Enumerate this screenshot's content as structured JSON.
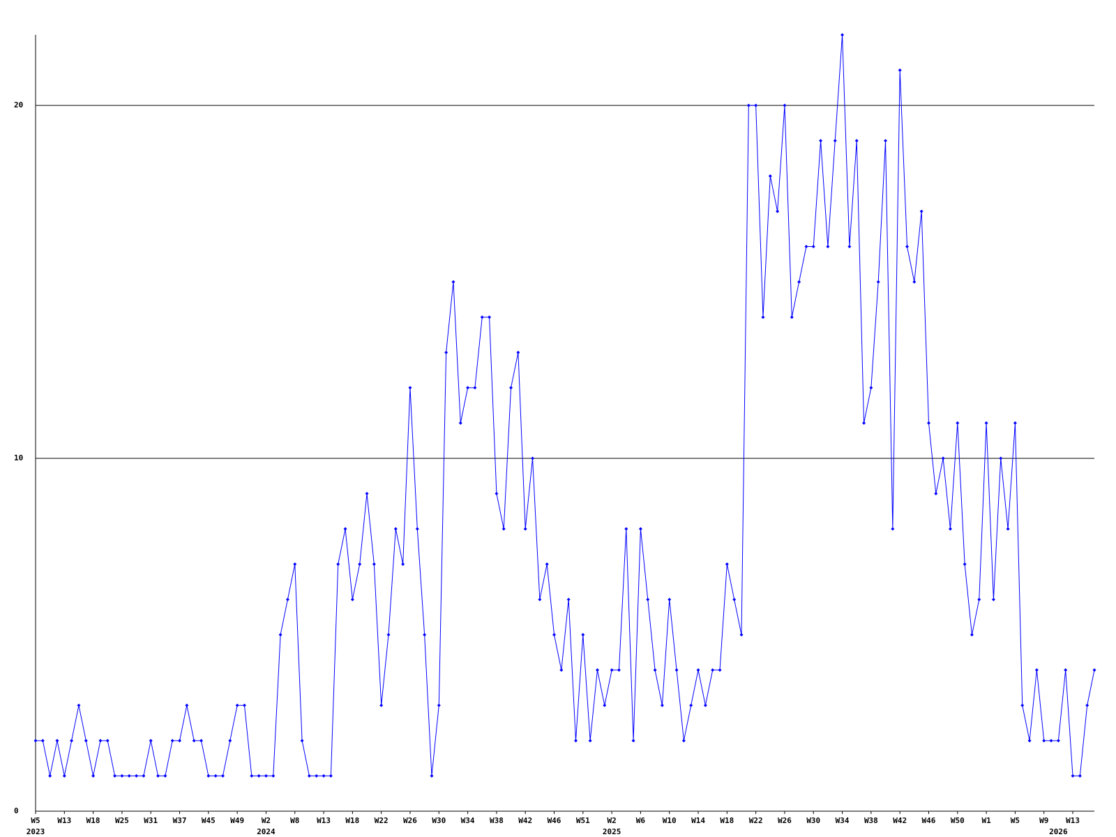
{
  "chart_data": {
    "type": "line",
    "color": "#0000ff",
    "categories": [
      "W5",
      null,
      null,
      null,
      "W13",
      null,
      null,
      null,
      "W18",
      null,
      null,
      null,
      "W25",
      null,
      null,
      null,
      "W31",
      null,
      null,
      null,
      "W37",
      null,
      null,
      null,
      "W45",
      null,
      null,
      null,
      "W49",
      null,
      null,
      null,
      "W2",
      null,
      null,
      null,
      "W8",
      null,
      null,
      null,
      "W13",
      null,
      null,
      null,
      "W18",
      null,
      null,
      null,
      "W22",
      null,
      null,
      null,
      "W26",
      null,
      null,
      null,
      "W30",
      null,
      null,
      null,
      "W34",
      null,
      null,
      null,
      "W38",
      null,
      null,
      null,
      "W42",
      null,
      null,
      null,
      "W46",
      null,
      null,
      null,
      "W51",
      null,
      null,
      null,
      "W2",
      null,
      null,
      null,
      "W6",
      null,
      null,
      null,
      "W10",
      null,
      null,
      null,
      "W14",
      null,
      null,
      null,
      "W18",
      null,
      null,
      null,
      "W22",
      null,
      null,
      null,
      "W26",
      null,
      null,
      null,
      "W30",
      null,
      null,
      null,
      "W34",
      null,
      null,
      null,
      "W38",
      null,
      null,
      null,
      "W42",
      null,
      null,
      null,
      "W46",
      null,
      null,
      null,
      "W50",
      null,
      null,
      null,
      "W1",
      null,
      null,
      null,
      "W5",
      null,
      null,
      null,
      "W9",
      null,
      null,
      null,
      "W13",
      null,
      null,
      null
    ],
    "years": [
      "2023",
      null,
      null,
      null,
      null,
      null,
      null,
      null,
      null,
      null,
      null,
      null,
      null,
      null,
      null,
      null,
      null,
      null,
      null,
      null,
      null,
      null,
      null,
      null,
      null,
      null,
      null,
      null,
      null,
      null,
      null,
      null,
      "2024",
      null,
      null,
      null,
      null,
      null,
      null,
      null,
      null,
      null,
      null,
      null,
      null,
      null,
      null,
      null,
      null,
      null,
      null,
      null,
      null,
      null,
      null,
      null,
      null,
      null,
      null,
      null,
      null,
      null,
      null,
      null,
      null,
      null,
      null,
      null,
      null,
      null,
      null,
      null,
      null,
      null,
      null,
      null,
      null,
      null,
      null,
      null,
      "2025",
      null,
      null,
      null,
      null,
      null,
      null,
      null,
      null,
      null,
      null,
      null,
      null,
      null,
      null,
      null,
      null,
      null,
      null,
      null,
      null,
      null,
      null,
      null,
      null,
      null,
      null,
      null,
      null,
      null,
      null,
      null,
      null,
      null,
      null,
      null,
      null,
      null,
      null,
      null,
      null,
      null,
      null,
      null,
      null,
      null,
      null,
      null,
      null,
      null,
      null,
      null,
      null,
      null,
      null,
      null,
      null,
      null,
      null,
      null,
      null,
      null,
      "2026",
      null,
      null,
      null,
      null,
      null,
      null,
      null,
      null,
      null,
      null,
      null,
      null,
      null,
      null,
      null
    ],
    "values": [
      2,
      2,
      1,
      2,
      1,
      2,
      3,
      2,
      1,
      2,
      2,
      1,
      1,
      1,
      1,
      1,
      2,
      1,
      1,
      2,
      2,
      3,
      2,
      2,
      1,
      1,
      1,
      2,
      3,
      3,
      1,
      1,
      1,
      1,
      5,
      6,
      7,
      2,
      1,
      1,
      1,
      1,
      7,
      8,
      6,
      7,
      9,
      7,
      3,
      5,
      8,
      7,
      12,
      8,
      5,
      1,
      3,
      13,
      15,
      11,
      12,
      12,
      14,
      14,
      9,
      8,
      12,
      13,
      8,
      10,
      6,
      7,
      5,
      4,
      6,
      2,
      5,
      2,
      4,
      3,
      4,
      4,
      8,
      2,
      8,
      6,
      4,
      3,
      6,
      4,
      2,
      3,
      4,
      3,
      4,
      4,
      7,
      6,
      5,
      20,
      20,
      14,
      18,
      17,
      20,
      14,
      15,
      16,
      16,
      19,
      16,
      19,
      22,
      16,
      19,
      11,
      12,
      15,
      19,
      8,
      21,
      16,
      15,
      17,
      11,
      9,
      10,
      8,
      11,
      7,
      5,
      6,
      11,
      6,
      10,
      8,
      11,
      3,
      2,
      4,
      2,
      2,
      2,
      4,
      1,
      1,
      3,
      4
    ],
    "ylim": [
      0,
      22
    ],
    "yticks": [
      0,
      10,
      20
    ],
    "grid": true
  }
}
